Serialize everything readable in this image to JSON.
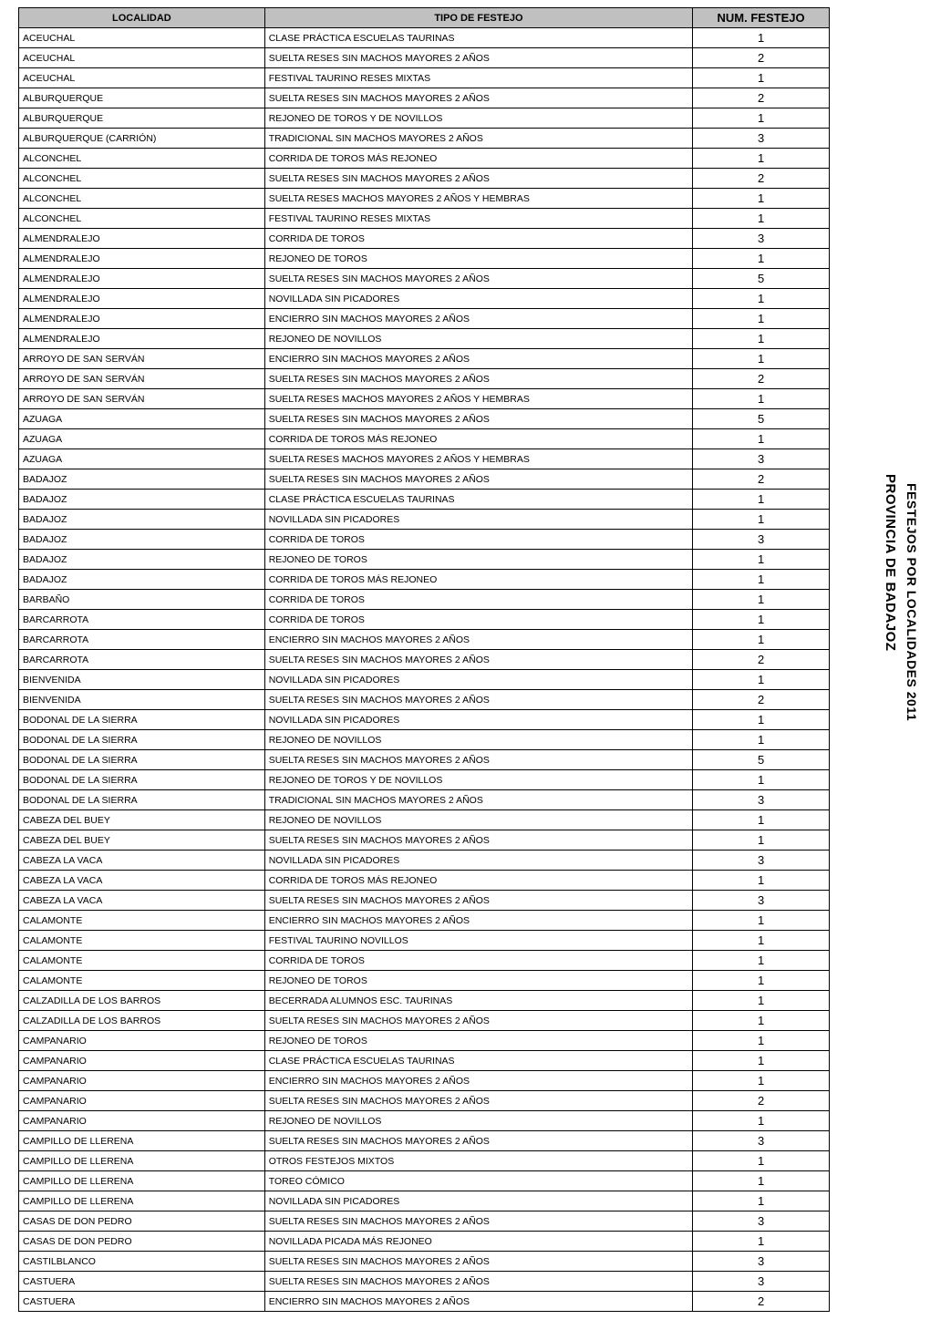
{
  "headers": {
    "localidad": "LOCALIDAD",
    "tipo": "TIPO DE FESTEJO",
    "num": "NUM. FESTEJO"
  },
  "sideText1": "PROVINCIA DE BADAJOZ",
  "sideText2": "FESTEJOS POR LOCALIDADES 2011",
  "colors": {
    "headerBg": "#c0c0c0",
    "border": "#000000",
    "background": "#ffffff"
  },
  "rows": [
    {
      "localidad": "ACEUCHAL",
      "tipo": "CLASE PRÁCTICA ESCUELAS TAURINAS",
      "num": "1"
    },
    {
      "localidad": "ACEUCHAL",
      "tipo": "SUELTA RESES SIN MACHOS MAYORES 2 AÑOS",
      "num": "2"
    },
    {
      "localidad": "ACEUCHAL",
      "tipo": "FESTIVAL TAURINO RESES MIXTAS",
      "num": "1"
    },
    {
      "localidad": "ALBURQUERQUE",
      "tipo": "SUELTA RESES SIN MACHOS MAYORES 2 AÑOS",
      "num": "2"
    },
    {
      "localidad": "ALBURQUERQUE",
      "tipo": "REJONEO DE TOROS Y DE NOVILLOS",
      "num": "1"
    },
    {
      "localidad": "ALBURQUERQUE (CARRIÓN)",
      "tipo": "TRADICIONAL SIN MACHOS MAYORES 2 AÑOS",
      "num": "3"
    },
    {
      "localidad": "ALCONCHEL",
      "tipo": "CORRIDA DE TOROS MÁS REJONEO",
      "num": "1"
    },
    {
      "localidad": "ALCONCHEL",
      "tipo": "SUELTA RESES SIN MACHOS MAYORES 2 AÑOS",
      "num": "2"
    },
    {
      "localidad": "ALCONCHEL",
      "tipo": "SUELTA RESES MACHOS MAYORES 2 AÑOS Y HEMBRAS",
      "num": "1"
    },
    {
      "localidad": "ALCONCHEL",
      "tipo": "FESTIVAL TAURINO RESES MIXTAS",
      "num": "1"
    },
    {
      "localidad": "ALMENDRALEJO",
      "tipo": "CORRIDA DE TOROS",
      "num": "3"
    },
    {
      "localidad": "ALMENDRALEJO",
      "tipo": "REJONEO DE TOROS",
      "num": "1"
    },
    {
      "localidad": "ALMENDRALEJO",
      "tipo": "SUELTA RESES SIN MACHOS MAYORES 2 AÑOS",
      "num": "5"
    },
    {
      "localidad": "ALMENDRALEJO",
      "tipo": "NOVILLADA SIN PICADORES",
      "num": "1"
    },
    {
      "localidad": "ALMENDRALEJO",
      "tipo": "ENCIERRO SIN MACHOS MAYORES 2 AÑOS",
      "num": "1"
    },
    {
      "localidad": "ALMENDRALEJO",
      "tipo": "REJONEO DE NOVILLOS",
      "num": "1"
    },
    {
      "localidad": "ARROYO DE SAN SERVÁN",
      "tipo": "ENCIERRO SIN MACHOS MAYORES 2 AÑOS",
      "num": "1"
    },
    {
      "localidad": "ARROYO DE SAN SERVÁN",
      "tipo": "SUELTA RESES SIN MACHOS MAYORES 2 AÑOS",
      "num": "2"
    },
    {
      "localidad": "ARROYO DE SAN SERVÁN",
      "tipo": "SUELTA RESES MACHOS MAYORES 2 AÑOS Y HEMBRAS",
      "num": "1"
    },
    {
      "localidad": "AZUAGA",
      "tipo": "SUELTA RESES SIN MACHOS MAYORES 2 AÑOS",
      "num": "5"
    },
    {
      "localidad": "AZUAGA",
      "tipo": "CORRIDA DE TOROS MÁS REJONEO",
      "num": "1"
    },
    {
      "localidad": "AZUAGA",
      "tipo": "SUELTA RESES MACHOS MAYORES 2 AÑOS Y HEMBRAS",
      "num": "3"
    },
    {
      "localidad": "BADAJOZ",
      "tipo": "SUELTA RESES SIN MACHOS MAYORES 2 AÑOS",
      "num": "2"
    },
    {
      "localidad": "BADAJOZ",
      "tipo": "CLASE PRÁCTICA ESCUELAS TAURINAS",
      "num": "1"
    },
    {
      "localidad": "BADAJOZ",
      "tipo": "NOVILLADA SIN PICADORES",
      "num": "1"
    },
    {
      "localidad": "BADAJOZ",
      "tipo": "CORRIDA DE TOROS",
      "num": "3"
    },
    {
      "localidad": "BADAJOZ",
      "tipo": "REJONEO DE TOROS",
      "num": "1"
    },
    {
      "localidad": "BADAJOZ",
      "tipo": "CORRIDA DE TOROS MÁS REJONEO",
      "num": "1"
    },
    {
      "localidad": "BARBAÑO",
      "tipo": "CORRIDA DE TOROS",
      "num": "1"
    },
    {
      "localidad": "BARCARROTA",
      "tipo": "CORRIDA DE TOROS",
      "num": "1"
    },
    {
      "localidad": "BARCARROTA",
      "tipo": "ENCIERRO SIN MACHOS MAYORES 2 AÑOS",
      "num": "1"
    },
    {
      "localidad": "BARCARROTA",
      "tipo": "SUELTA RESES SIN MACHOS MAYORES 2 AÑOS",
      "num": "2"
    },
    {
      "localidad": "BIENVENIDA",
      "tipo": "NOVILLADA SIN PICADORES",
      "num": "1"
    },
    {
      "localidad": "BIENVENIDA",
      "tipo": "SUELTA RESES SIN MACHOS MAYORES 2 AÑOS",
      "num": "2"
    },
    {
      "localidad": "BODONAL DE LA SIERRA",
      "tipo": "NOVILLADA SIN PICADORES",
      "num": "1"
    },
    {
      "localidad": "BODONAL DE LA SIERRA",
      "tipo": "REJONEO DE NOVILLOS",
      "num": "1"
    },
    {
      "localidad": "BODONAL DE LA SIERRA",
      "tipo": "SUELTA RESES SIN MACHOS MAYORES 2 AÑOS",
      "num": "5"
    },
    {
      "localidad": "BODONAL DE LA SIERRA",
      "tipo": "REJONEO DE TOROS Y DE NOVILLOS",
      "num": "1"
    },
    {
      "localidad": "BODONAL DE LA SIERRA",
      "tipo": "TRADICIONAL SIN MACHOS MAYORES 2 AÑOS",
      "num": "3"
    },
    {
      "localidad": "CABEZA DEL BUEY",
      "tipo": "REJONEO DE NOVILLOS",
      "num": "1"
    },
    {
      "localidad": "CABEZA DEL BUEY",
      "tipo": "SUELTA RESES SIN MACHOS MAYORES 2 AÑOS",
      "num": "1"
    },
    {
      "localidad": "CABEZA LA VACA",
      "tipo": "NOVILLADA SIN PICADORES",
      "num": "3"
    },
    {
      "localidad": "CABEZA LA VACA",
      "tipo": "CORRIDA DE TOROS MÁS REJONEO",
      "num": "1"
    },
    {
      "localidad": "CABEZA LA VACA",
      "tipo": "SUELTA RESES SIN MACHOS MAYORES 2 AÑOS",
      "num": "3"
    },
    {
      "localidad": "CALAMONTE",
      "tipo": "ENCIERRO SIN MACHOS MAYORES 2 AÑOS",
      "num": "1"
    },
    {
      "localidad": "CALAMONTE",
      "tipo": "FESTIVAL TAURINO NOVILLOS",
      "num": "1"
    },
    {
      "localidad": "CALAMONTE",
      "tipo": "CORRIDA DE TOROS",
      "num": "1"
    },
    {
      "localidad": "CALAMONTE",
      "tipo": "REJONEO DE TOROS",
      "num": "1"
    },
    {
      "localidad": "CALZADILLA DE LOS BARROS",
      "tipo": "BECERRADA ALUMNOS ESC. TAURINAS",
      "num": "1"
    },
    {
      "localidad": "CALZADILLA DE LOS BARROS",
      "tipo": "SUELTA RESES SIN MACHOS MAYORES 2 AÑOS",
      "num": "1"
    },
    {
      "localidad": "CAMPANARIO",
      "tipo": "REJONEO DE TOROS",
      "num": "1"
    },
    {
      "localidad": "CAMPANARIO",
      "tipo": "CLASE PRÁCTICA ESCUELAS TAURINAS",
      "num": "1"
    },
    {
      "localidad": "CAMPANARIO",
      "tipo": "ENCIERRO SIN MACHOS MAYORES 2 AÑOS",
      "num": "1"
    },
    {
      "localidad": "CAMPANARIO",
      "tipo": "SUELTA RESES SIN MACHOS MAYORES 2 AÑOS",
      "num": "2"
    },
    {
      "localidad": "CAMPANARIO",
      "tipo": "REJONEO DE NOVILLOS",
      "num": "1"
    },
    {
      "localidad": "CAMPILLO DE LLERENA",
      "tipo": "SUELTA RESES SIN MACHOS MAYORES 2 AÑOS",
      "num": "3"
    },
    {
      "localidad": "CAMPILLO DE LLERENA",
      "tipo": "OTROS FESTEJOS MIXTOS",
      "num": "1"
    },
    {
      "localidad": "CAMPILLO DE LLERENA",
      "tipo": "TOREO CÓMICO",
      "num": "1"
    },
    {
      "localidad": "CAMPILLO DE LLERENA",
      "tipo": "NOVILLADA SIN PICADORES",
      "num": "1"
    },
    {
      "localidad": "CASAS DE DON PEDRO",
      "tipo": "SUELTA RESES SIN MACHOS MAYORES 2 AÑOS",
      "num": "3"
    },
    {
      "localidad": "CASAS DE DON PEDRO",
      "tipo": "NOVILLADA PICADA MÁS REJONEO",
      "num": "1"
    },
    {
      "localidad": "CASTILBLANCO",
      "tipo": "SUELTA RESES SIN MACHOS MAYORES 2 AÑOS",
      "num": "3"
    },
    {
      "localidad": "CASTUERA",
      "tipo": "SUELTA RESES SIN MACHOS MAYORES 2 AÑOS",
      "num": "3"
    },
    {
      "localidad": "CASTUERA",
      "tipo": "ENCIERRO SIN MACHOS MAYORES 2 AÑOS",
      "num": "2"
    }
  ]
}
